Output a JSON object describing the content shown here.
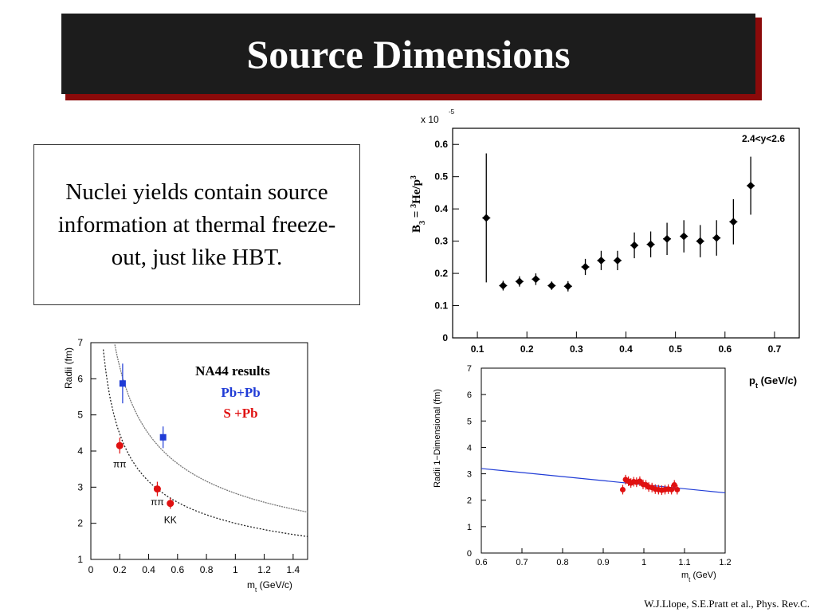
{
  "slide": {
    "title": "Source Dimensions",
    "text_box": "Nuclei yields contain source information at thermal freeze-out, just like HBT.",
    "citation": "W.J.Llope, S.E.Pratt et al., Phys. Rev.C.",
    "colors": {
      "title_bg": "#1c1c1c",
      "title_shadow": "#8b0a0a",
      "blue": "#1f3bd6",
      "red": "#e01010"
    }
  },
  "chart_data": [
    {
      "id": "b3",
      "type": "scatter",
      "title": "",
      "annotation": "2.4<y<2.6",
      "exponent_label": "x 10",
      "exponent_value": "-5",
      "ylabel_prefix": "B",
      "ylabel_sub": "3",
      "ylabel_mid": " = ",
      "ylabel_sup": "3",
      "ylabel_body": "He/p",
      "ylabel_sup2": "3",
      "xlabel": "p",
      "xlabel_sub": "t",
      "xlabel_unit": " (GeV/c)",
      "xlim": [
        0.05,
        0.75
      ],
      "ylim": [
        0,
        0.65
      ],
      "xticks": [
        0.1,
        0.2,
        0.3,
        0.4,
        0.5,
        0.6,
        0.7
      ],
      "xtick_labels": [
        "0.1",
        "0.2",
        "0.3",
        "0.4",
        "0.5",
        "0.6",
        "0.7"
      ],
      "yticks": [
        0,
        0.1,
        0.2,
        0.3,
        0.4,
        0.5,
        0.6
      ],
      "ytick_labels": [
        "0",
        "0.1",
        "0.2",
        "0.3",
        "0.4",
        "0.5",
        "0.6"
      ],
      "points": [
        {
          "x": 0.118,
          "y": 0.372,
          "err": 0.2
        },
        {
          "x": 0.152,
          "y": 0.162,
          "err": 0.015
        },
        {
          "x": 0.185,
          "y": 0.175,
          "err": 0.016
        },
        {
          "x": 0.218,
          "y": 0.182,
          "err": 0.018
        },
        {
          "x": 0.25,
          "y": 0.162,
          "err": 0.013
        },
        {
          "x": 0.283,
          "y": 0.16,
          "err": 0.016
        },
        {
          "x": 0.318,
          "y": 0.22,
          "err": 0.025
        },
        {
          "x": 0.35,
          "y": 0.24,
          "err": 0.03
        },
        {
          "x": 0.383,
          "y": 0.24,
          "err": 0.03
        },
        {
          "x": 0.417,
          "y": 0.287,
          "err": 0.04
        },
        {
          "x": 0.45,
          "y": 0.29,
          "err": 0.04
        },
        {
          "x": 0.483,
          "y": 0.307,
          "err": 0.05
        },
        {
          "x": 0.517,
          "y": 0.315,
          "err": 0.05
        },
        {
          "x": 0.55,
          "y": 0.3,
          "err": 0.05
        },
        {
          "x": 0.583,
          "y": 0.31,
          "err": 0.055
        },
        {
          "x": 0.617,
          "y": 0.36,
          "err": 0.07
        },
        {
          "x": 0.652,
          "y": 0.472,
          "err": 0.09
        }
      ]
    },
    {
      "id": "radii-mt",
      "type": "scatter",
      "legend_title": "NA44 results",
      "legend_pbpb": "Pb+Pb",
      "legend_spb": "S +Pb",
      "ylabel": "Radii (fm)",
      "xlabel": "m",
      "xlabel_sub": "t",
      "xlabel_unit": " (GeV/c)",
      "annotations": [
        {
          "text": "ππ",
          "x": 0.2,
          "y": 3.55
        },
        {
          "text": "ππ",
          "x": 0.46,
          "y": 2.5
        },
        {
          "text": "KK",
          "x": 0.55,
          "y": 2.0
        }
      ],
      "xlim": [
        0,
        1.5
      ],
      "ylim": [
        1,
        7
      ],
      "xticks": [
        0,
        0.2,
        0.4,
        0.6,
        0.8,
        1,
        1.2,
        1.4
      ],
      "xtick_labels": [
        "0",
        "0.2",
        "0.4",
        "0.6",
        "0.8",
        "1",
        "1.2",
        "1.4"
      ],
      "yticks": [
        1,
        2,
        3,
        4,
        5,
        6,
        7
      ],
      "ytick_labels": [
        "1",
        "2",
        "3",
        "4",
        "5",
        "6",
        "7"
      ],
      "series": [
        {
          "name": "Pb+Pb",
          "marker": "square",
          "color": "#1f3bd6",
          "points": [
            {
              "x": 0.22,
              "y": 5.87,
              "err": 0.55
            },
            {
              "x": 0.5,
              "y": 4.38,
              "err": 0.3
            }
          ],
          "fit_curve_A": 2.83
        },
        {
          "name": "S +Pb",
          "marker": "circle",
          "color": "#e01010",
          "points": [
            {
              "x": 0.2,
              "y": 4.15,
              "err": 0.22
            },
            {
              "x": 0.46,
              "y": 2.95,
              "err": 0.2
            },
            {
              "x": 0.55,
              "y": 2.55,
              "err": 0.15
            }
          ],
          "fit_curve_A": 2.0
        }
      ]
    },
    {
      "id": "radii-1d",
      "type": "scatter",
      "ylabel": "Radii 1−Dimensional (fm)",
      "xlabel": "m",
      "xlabel_sub": "t",
      "xlabel_unit": " (GeV)",
      "xlim": [
        0.6,
        1.2
      ],
      "ylim": [
        0,
        7
      ],
      "xticks": [
        0.6,
        0.7,
        0.8,
        0.9,
        1,
        1.1,
        1.2
      ],
      "xtick_labels": [
        "0.6",
        "0.7",
        "0.8",
        "0.9",
        "1",
        "1.1",
        "1.2"
      ],
      "yticks": [
        0,
        1,
        2,
        3,
        4,
        5,
        6,
        7
      ],
      "ytick_labels": [
        "0",
        "1",
        "2",
        "3",
        "4",
        "5",
        "6",
        "7"
      ],
      "fit_line": {
        "x": [
          0.6,
          1.2
        ],
        "y": [
          3.2,
          2.28
        ],
        "color": "#1f3bd6"
      },
      "points": [
        {
          "x": 0.948,
          "y": 2.4
        },
        {
          "x": 0.955,
          "y": 2.78
        },
        {
          "x": 0.962,
          "y": 2.72
        },
        {
          "x": 0.968,
          "y": 2.65
        },
        {
          "x": 0.975,
          "y": 2.7
        },
        {
          "x": 0.982,
          "y": 2.68
        },
        {
          "x": 0.99,
          "y": 2.72
        },
        {
          "x": 0.998,
          "y": 2.6
        },
        {
          "x": 1.005,
          "y": 2.58
        },
        {
          "x": 1.012,
          "y": 2.5
        },
        {
          "x": 1.02,
          "y": 2.48
        },
        {
          "x": 1.028,
          "y": 2.42
        },
        {
          "x": 1.036,
          "y": 2.4
        },
        {
          "x": 1.044,
          "y": 2.38
        },
        {
          "x": 1.052,
          "y": 2.4
        },
        {
          "x": 1.06,
          "y": 2.42
        },
        {
          "x": 1.068,
          "y": 2.4
        },
        {
          "x": 1.075,
          "y": 2.58
        },
        {
          "x": 1.082,
          "y": 2.4
        }
      ]
    }
  ]
}
